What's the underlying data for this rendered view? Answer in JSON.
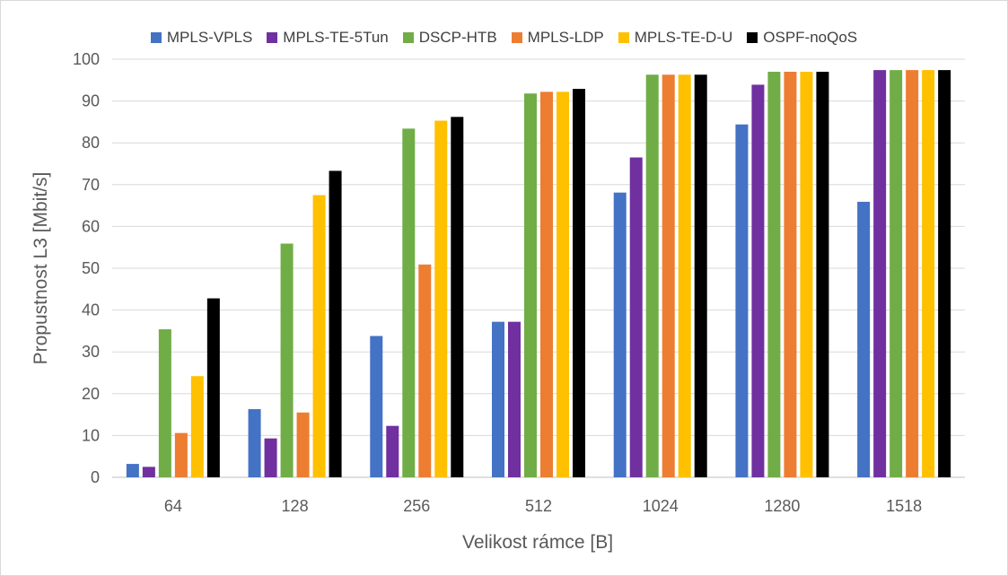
{
  "chart_data": {
    "type": "bar",
    "xlabel": "Velikost rámce [B]",
    "ylabel": "Propustnost L3 [Mbit/s]",
    "ylim": [
      0,
      100
    ],
    "yticks": [
      0,
      10,
      20,
      30,
      40,
      50,
      60,
      70,
      80,
      90,
      100
    ],
    "grid": true,
    "legend_position": "top",
    "categories": [
      "64",
      "128",
      "256",
      "512",
      "1024",
      "1280",
      "1518"
    ],
    "series": [
      {
        "name": "MPLS-VPLS",
        "color": "#4472c4",
        "values": [
          3.2,
          16.3,
          33.8,
          37.2,
          68.1,
          84.4,
          65.9
        ]
      },
      {
        "name": "MPLS-TE-5Tun",
        "color": "#7030a0",
        "values": [
          2.5,
          9.3,
          12.3,
          37.2,
          76.5,
          93.9,
          97.4
        ]
      },
      {
        "name": "DSCP-HTB",
        "color": "#70ad47",
        "values": [
          35.4,
          55.9,
          83.4,
          91.8,
          96.3,
          97.0,
          97.4
        ]
      },
      {
        "name": "MPLS-LDP",
        "color": "#ed7d31",
        "values": [
          10.6,
          15.5,
          50.9,
          92.2,
          96.3,
          97.0,
          97.4
        ]
      },
      {
        "name": "MPLS-TE-D-U",
        "color": "#ffc000",
        "values": [
          24.2,
          67.5,
          85.3,
          92.2,
          96.3,
          97.0,
          97.4
        ]
      },
      {
        "name": "OSPF-noQoS",
        "color": "#000000",
        "values": [
          42.8,
          73.3,
          86.2,
          92.9,
          96.3,
          97.0,
          97.4
        ]
      }
    ]
  }
}
